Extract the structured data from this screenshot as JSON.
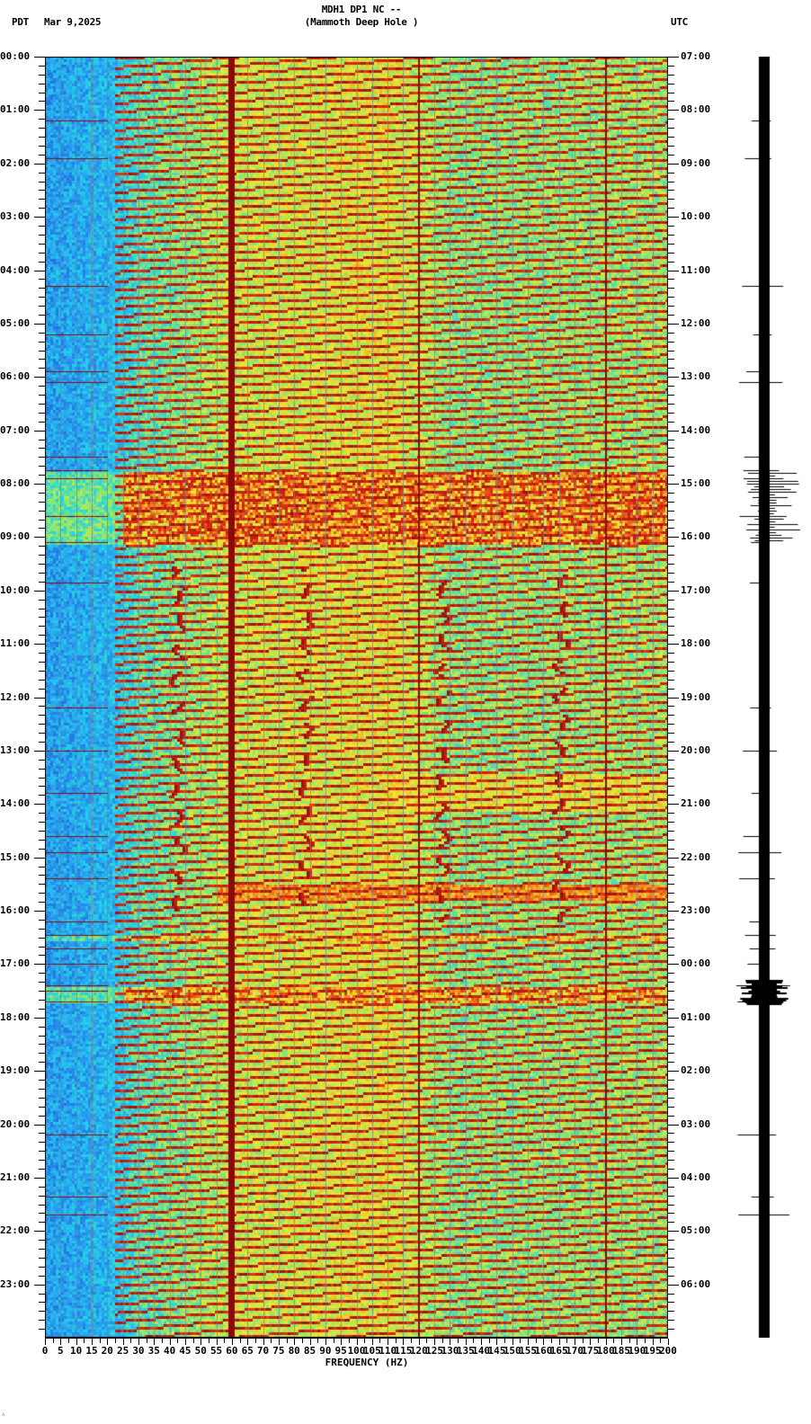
{
  "header": {
    "title": "MDH1 DP1 NC --",
    "subtitle": "(Mammoth Deep Hole )",
    "left_timezone": "PDT",
    "date": "Mar 9,2025",
    "right_timezone": "UTC"
  },
  "corner_mark": "∴",
  "chart_data": {
    "type": "heatmap",
    "title": "MDH1 DP1 NC -- (Mammoth Deep Hole )",
    "xlabel": "FREQUENCY (HZ)",
    "ylabel_left": "PDT",
    "ylabel_right": "UTC",
    "xlim": [
      0,
      200
    ],
    "x_ticks": [
      "0",
      "5",
      "10",
      "15",
      "20",
      "25",
      "30",
      "35",
      "40",
      "45",
      "50",
      "55",
      "60",
      "65",
      "70",
      "75",
      "80",
      "85",
      "90",
      "95",
      "100",
      "105",
      "110",
      "115",
      "120",
      "125",
      "130",
      "135",
      "140",
      "145",
      "150",
      "155",
      "160",
      "165",
      "170",
      "175",
      "180",
      "185",
      "190",
      "195",
      "200"
    ],
    "y_ticks_left": [
      "00:00",
      "01:00",
      "02:00",
      "03:00",
      "04:00",
      "05:00",
      "06:00",
      "07:00",
      "08:00",
      "09:00",
      "10:00",
      "11:00",
      "12:00",
      "13:00",
      "14:00",
      "15:00",
      "16:00",
      "17:00",
      "18:00",
      "19:00",
      "20:00",
      "21:00",
      "22:00",
      "23:00"
    ],
    "y_ticks_right": [
      "07:00",
      "08:00",
      "09:00",
      "10:00",
      "11:00",
      "12:00",
      "13:00",
      "14:00",
      "15:00",
      "16:00",
      "17:00",
      "18:00",
      "19:00",
      "20:00",
      "21:00",
      "22:00",
      "23:00",
      "00:00",
      "01:00",
      "02:00",
      "03:00",
      "04:00",
      "05:00",
      "06:00"
    ],
    "minor_tick_minutes": 10,
    "colormap": [
      "#1f5fd8",
      "#2a9cf0",
      "#22d4e8",
      "#8fe86a",
      "#f0e832",
      "#f08a1e",
      "#d82814",
      "#8a0a0a"
    ],
    "persistent_lines_hz": [
      60,
      120,
      180
    ],
    "dominant_line_hz": 60,
    "gridline_spacing_hz": 5,
    "background_level_by_freq": [
      {
        "hz": 0,
        "level": 0.15
      },
      {
        "hz": 20,
        "level": 0.2
      },
      {
        "hz": 30,
        "level": 0.35
      },
      {
        "hz": 60,
        "level": 0.5
      },
      {
        "hz": 110,
        "level": 0.55
      },
      {
        "hz": 130,
        "level": 0.42
      },
      {
        "hz": 200,
        "level": 0.45
      }
    ],
    "noise_bursts_hours": [
      {
        "start": 7.75,
        "end": 9.1,
        "intensity": 0.9,
        "label": "broadband noise"
      },
      {
        "start": 16.45,
        "end": 16.55,
        "intensity": 0.8
      },
      {
        "start": 17.4,
        "end": 17.7,
        "intensity": 0.85
      }
    ],
    "broadband_bands_hours": [
      {
        "start": 13.4,
        "end": 14.1,
        "from_hz": 110,
        "intensity": 0.55
      },
      {
        "start": 15.5,
        "end": 15.8,
        "from_hz": 55,
        "intensity": 0.7
      }
    ],
    "wandering_tones_hz": [
      42,
      83,
      127,
      165
    ],
    "wandering_tone_window_hours": [
      9.5,
      16.2
    ],
    "seismogram_events_hours": [
      1.2,
      1.9,
      4.3,
      5.2,
      5.9,
      6.1,
      7.5,
      7.75,
      7.9,
      8.6,
      9.1,
      9.85,
      12.2,
      13.0,
      13.8,
      14.6,
      14.9,
      15.4,
      16.2,
      16.45,
      16.7,
      17.0,
      17.4,
      17.5,
      17.7,
      20.2,
      21.35,
      21.7
    ]
  }
}
